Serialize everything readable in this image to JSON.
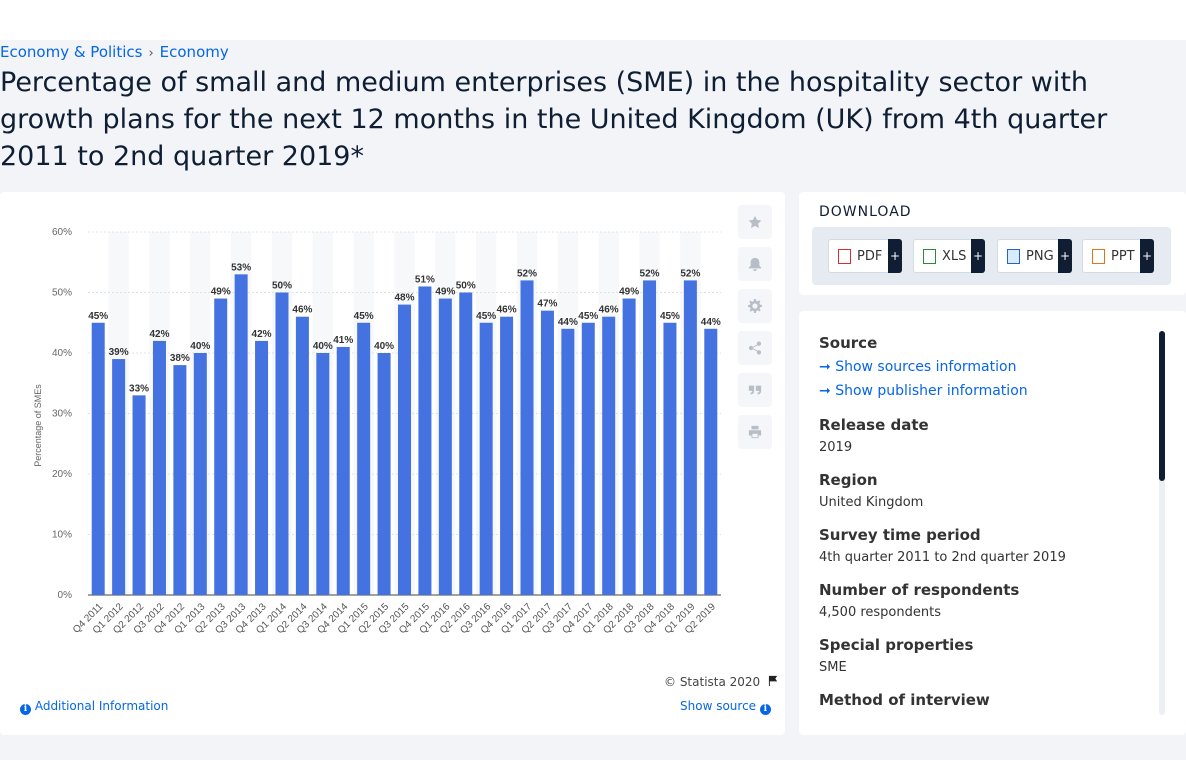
{
  "breadcrumb": {
    "item1": "Economy & Politics",
    "separator": "›",
    "item2": "Economy"
  },
  "page_title": "Percentage of small and medium enterprises (SME) in the hospitality sector with growth plans for the next 12 months in the United Kingdom (UK) from 4th quarter 2011 to 2nd quarter 2019*",
  "chart_data": {
    "type": "bar",
    "categories": [
      "Q4 2011",
      "Q1 2012",
      "Q2 2012",
      "Q3 2012",
      "Q4 2012",
      "Q1 2013",
      "Q2 2013",
      "Q3 2013",
      "Q4 2013",
      "Q1 2014",
      "Q2 2014",
      "Q3 2014",
      "Q4 2014",
      "Q1 2015",
      "Q2 2015",
      "Q3 2015",
      "Q4 2015",
      "Q1 2016",
      "Q2 2016",
      "Q3 2016",
      "Q4 2016",
      "Q1 2017",
      "Q2 2017",
      "Q3 2017",
      "Q4 2017",
      "Q1 2018",
      "Q2 2018",
      "Q3 2018",
      "Q4 2018",
      "Q1 2019",
      "Q2 2019"
    ],
    "values": [
      45,
      39,
      33,
      42,
      38,
      40,
      49,
      53,
      42,
      50,
      46,
      40,
      41,
      45,
      40,
      48,
      51,
      49,
      50,
      45,
      46,
      52,
      47,
      44,
      45,
      46,
      49,
      52,
      45,
      52,
      44
    ],
    "value_suffix": "%",
    "ylabel": "Percentage of SMEs",
    "ylim": [
      0,
      60
    ],
    "yticks": [
      "0%",
      "10%",
      "20%",
      "30%",
      "40%",
      "50%",
      "60%"
    ],
    "bar_color": "#4472e0",
    "grid": true
  },
  "chart_footer": {
    "copyright": "© Statista 2020",
    "additional_info": "Additional Information",
    "show_source": "Show source"
  },
  "download": {
    "title": "DOWNLOAD",
    "buttons": [
      {
        "label": "PDF",
        "plus": "+"
      },
      {
        "label": "XLS",
        "plus": "+"
      },
      {
        "label": "PNG",
        "plus": "+"
      },
      {
        "label": "PPT",
        "plus": "+"
      }
    ]
  },
  "info": {
    "source_label": "Source",
    "show_sources": "Show sources information",
    "show_publisher": "Show publisher information",
    "release_date_label": "Release date",
    "release_date": "2019",
    "region_label": "Region",
    "region": "United Kingdom",
    "survey_period_label": "Survey time period",
    "survey_period": "4th quarter 2011 to 2nd quarter 2019",
    "respondents_label": "Number of respondents",
    "respondents": "4,500 respondents",
    "special_label": "Special properties",
    "special": "SME",
    "method_label": "Method of interview"
  }
}
